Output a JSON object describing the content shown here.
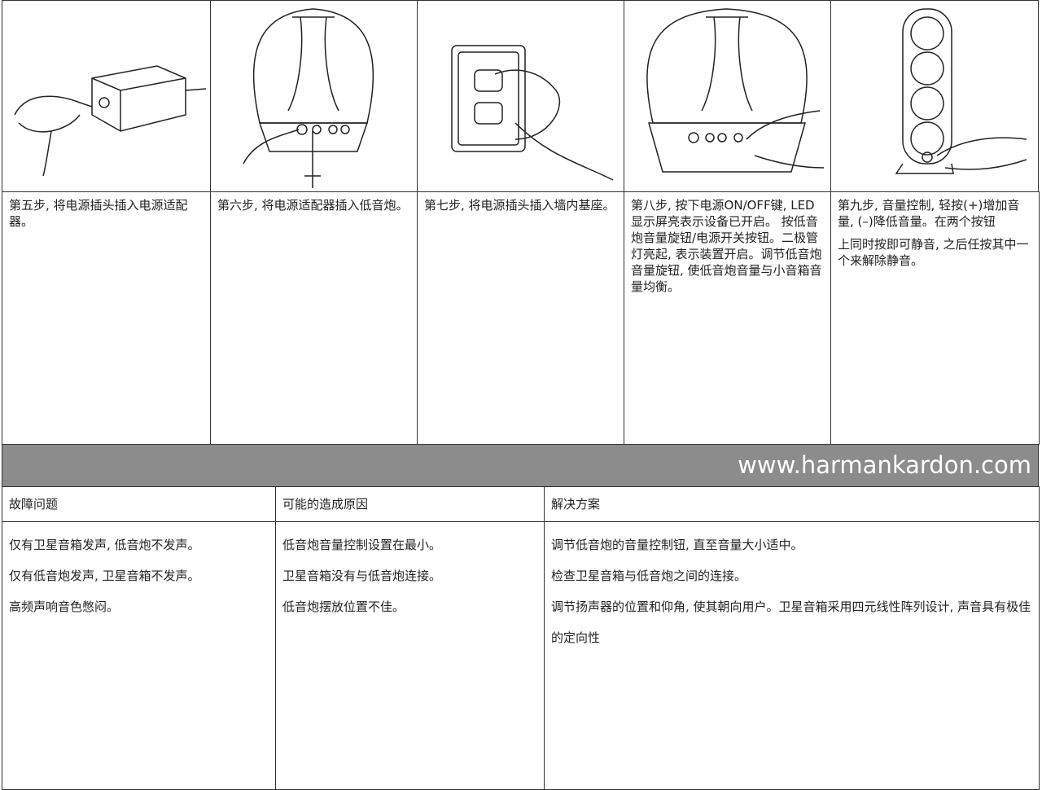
{
  "steps": [
    {
      "paragraphs": [
        "第五步, 将电源插头插入电源适配器。"
      ]
    },
    {
      "paragraphs": [
        "第六步, 将电源适配器插入低音炮。"
      ]
    },
    {
      "paragraphs": [
        "第七步, 将电源插头插入墙内基座。"
      ]
    },
    {
      "paragraphs": [
        "第八步, 按下电源ON/OFF键, LED显示屏亮表示设备已开启。 按低音炮音量旋钮/电源开关按钮。二极管灯亮起, 表示装置开启。调节低音炮音量旋钮, 使低音炮音量与小音箱音量均衡。"
      ]
    },
    {
      "paragraphs": [
        "第九步, 音量控制, 轻按(+)增加音量, (–)降低音量。在两个按钮",
        "上同时按即可静音, 之后任按其中一个来解除静音。"
      ]
    }
  ],
  "website": "www.harmankardon.com",
  "troubleshooting": {
    "headers": [
      "故障问题",
      "可能的造成原因",
      "解决方案"
    ],
    "rows": [
      [
        "仅有卫星音箱发声, 低音炮不发声。",
        "低音炮音量控制设置在最小。",
        "调节低音炮的音量控制钮, 直至音量大小适中。"
      ],
      [
        "仅有低音炮发声, 卫星音箱不发声。",
        "卫星音箱没有与低音炮连接。",
        "检查卫星音箱与低音炮之间的连接。"
      ],
      [
        "高频声响音色憋闷。",
        "低音炮摆放位置不佳。",
        "调节扬声器的位置和仰角, 使其朝向用户。卫星音箱采用四元线性阵列设计, 声音具有极佳的定向性"
      ]
    ]
  }
}
